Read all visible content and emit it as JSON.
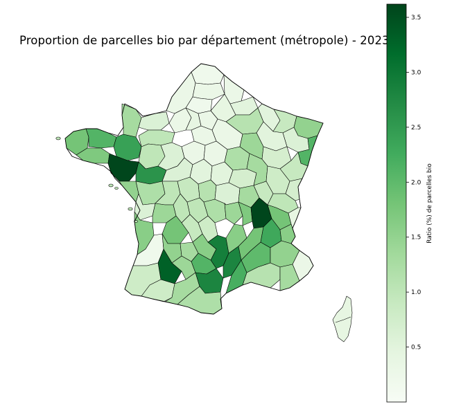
{
  "title": "Proportion de parcelles bio par département (métropole) - 2023",
  "colorbar": {
    "label": "Ratio (%) de parcelles bio",
    "range": [
      0.0,
      3.62
    ],
    "ticks": [
      {
        "value": 0.5,
        "label": "0.5"
      },
      {
        "value": 1.0,
        "label": "1.0"
      },
      {
        "value": 1.5,
        "label": "1.5"
      },
      {
        "value": 2.0,
        "label": "2.0"
      },
      {
        "value": 2.5,
        "label": "2.5"
      },
      {
        "value": 3.0,
        "label": "3.0"
      },
      {
        "value": 3.5,
        "label": "3.5"
      }
    ],
    "colormap": [
      "#f7fcf5",
      "#e5f5e0",
      "#c7e9c0",
      "#a1d99b",
      "#74c476",
      "#41ab5d",
      "#238b45",
      "#006d2c",
      "#00441b"
    ]
  },
  "chart_data": {
    "type": "choropleth",
    "title": "Proportion de parcelles bio par département (métropole) - 2023",
    "legend_label": "Ratio (%) de parcelles bio",
    "scale": {
      "min": 0.0,
      "max": 3.62
    },
    "regions": [
      {
        "name": "Finistère",
        "value": 1.8
      },
      {
        "name": "Côtes-d'Armor",
        "value": 2.1
      },
      {
        "name": "Morbihan",
        "value": 1.7
      },
      {
        "name": "Ille-et-Vilaine",
        "value": 2.4
      },
      {
        "name": "Loire-Atlantique",
        "value": 3.6
      },
      {
        "name": "Maine-et-Loire",
        "value": 2.6
      },
      {
        "name": "Mayenne",
        "value": 1.0
      },
      {
        "name": "Manche",
        "value": 1.3
      },
      {
        "name": "Calvados",
        "value": 0.6
      },
      {
        "name": "Vendée",
        "value": 1.5
      },
      {
        "name": "Deux-Sèvres",
        "value": 1.2
      },
      {
        "name": "Gironde",
        "value": 1.6
      },
      {
        "name": "Landes",
        "value": 0.2
      },
      {
        "name": "Gers",
        "value": 3.3
      },
      {
        "name": "Aveyron",
        "value": 2.9
      },
      {
        "name": "Tarn",
        "value": 2.1
      },
      {
        "name": "Hérault",
        "value": 2.8
      },
      {
        "name": "Aude",
        "value": 2.8
      },
      {
        "name": "Drôme",
        "value": 3.6
      },
      {
        "name": "Ardèche",
        "value": 2.0
      },
      {
        "name": "Vaucluse",
        "value": 2.3
      },
      {
        "name": "Gard",
        "value": 2.0
      },
      {
        "name": "Haut-Rhin",
        "value": 2.1
      },
      {
        "name": "Bas-Rhin",
        "value": 1.5
      },
      {
        "name": "Marne",
        "value": 1.1
      },
      {
        "name": "Côte-d'Or",
        "value": 1.2
      },
      {
        "name": "Corse",
        "value": 0.4
      }
    ]
  }
}
